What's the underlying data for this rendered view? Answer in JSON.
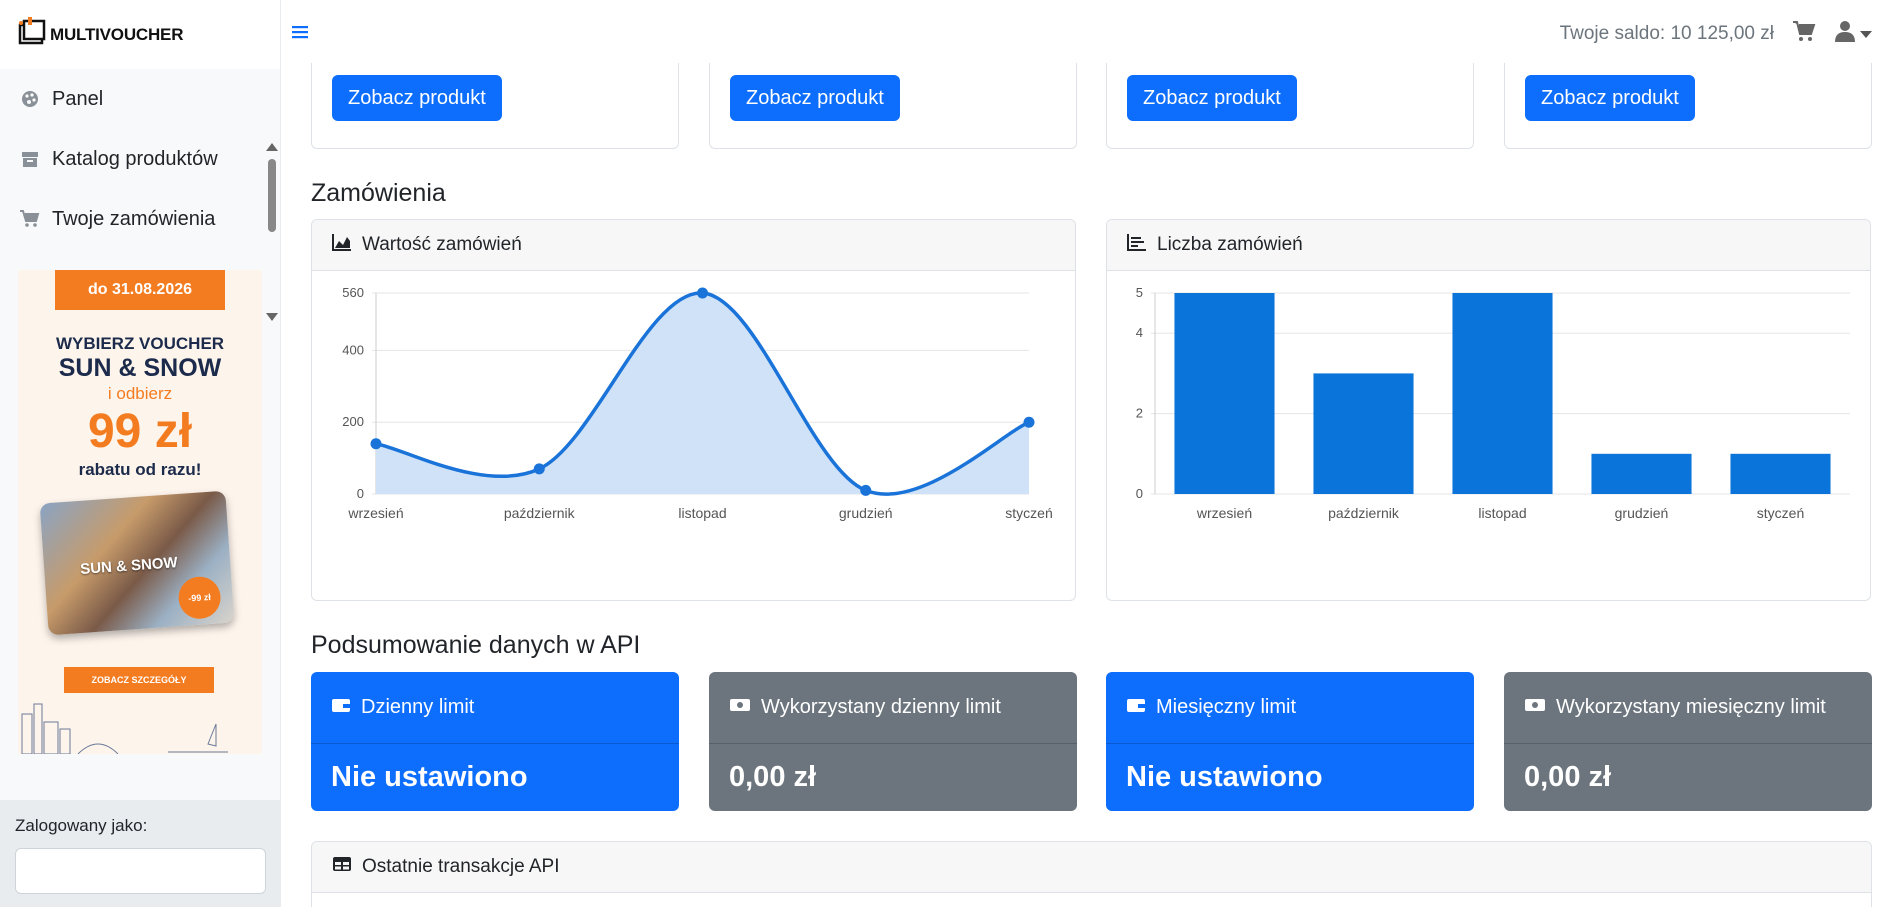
{
  "brand": {
    "name": "MULTIVOUCHER"
  },
  "header": {
    "balance": "Twoje saldo: 10 125,00 zł"
  },
  "sidebar": {
    "items": [
      {
        "label": "Panel",
        "icon": "palette-icon"
      },
      {
        "label": "Katalog produktów",
        "icon": "archive-icon"
      },
      {
        "label": "Twoje zamówienia",
        "icon": "cart-icon"
      }
    ],
    "promo": {
      "date": "do 31.08.2026",
      "line1": "WYBIERZ VOUCHER",
      "line2": "SUN & SNOW",
      "line3": "i odbierz",
      "price": "99 zł",
      "line4": "rabatu od razu!",
      "card_title": "SUN & SNOW",
      "badge": "-99 zł",
      "button": "ZOBACZ SZCZEGÓŁY"
    },
    "logged_label": "Zalogowany jako:"
  },
  "products": {
    "button_label": "Zobacz produkt"
  },
  "orders": {
    "title": "Zamówienia",
    "value_chart_title": "Wartość zamówień",
    "count_chart_title": "Liczba zamówień"
  },
  "api": {
    "title": "Podsumowanie danych w API",
    "cards": [
      {
        "label": "Dzienny limit",
        "value": "Nie ustawiono",
        "color": "#0d6efd"
      },
      {
        "label": "Wykorzystany dzienny limit",
        "value": "0,00 zł",
        "color": "#6c757d"
      },
      {
        "label": "Miesięczny limit",
        "value": "Nie ustawiono",
        "color": "#0d6efd"
      },
      {
        "label": "Wykorzystany miesięczny limit",
        "value": "0,00 zł",
        "color": "#6c757d"
      }
    ],
    "transactions_title": "Ostatnie transakcje API"
  },
  "chart_data": [
    {
      "type": "area",
      "title": "Wartość zamówień",
      "categories": [
        "wrzesień",
        "październik",
        "listopad",
        "grudzień",
        "styczeń"
      ],
      "values": [
        140,
        70,
        560,
        10,
        200
      ],
      "yticks": [
        0,
        200,
        400,
        560
      ],
      "ylim": [
        0,
        560
      ],
      "color": "#1a73d9",
      "fill": "#cfe2f7",
      "grid": true
    },
    {
      "type": "bar",
      "title": "Liczba zamówień",
      "categories": [
        "wrzesień",
        "październik",
        "listopad",
        "grudzień",
        "styczeń"
      ],
      "values": [
        5,
        3,
        5,
        1,
        1
      ],
      "yticks": [
        0,
        2,
        4,
        5
      ],
      "ylim": [
        0,
        5
      ],
      "color": "#0a74da",
      "grid": true
    }
  ]
}
